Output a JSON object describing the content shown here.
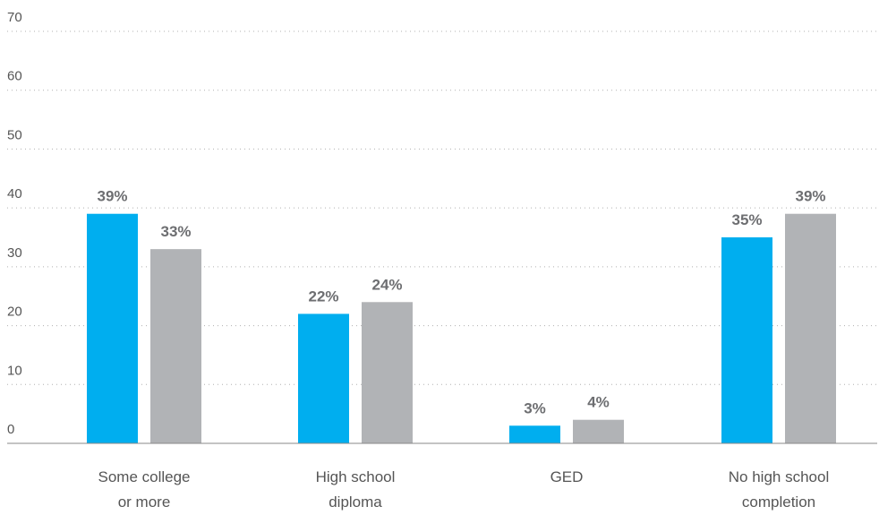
{
  "chart_data": {
    "type": "bar",
    "categories": [
      [
        "Some college",
        "or more"
      ],
      [
        "High school",
        "diploma"
      ],
      [
        "GED"
      ],
      [
        "No high school",
        "completion"
      ]
    ],
    "series": [
      {
        "color": "#00aeef",
        "values": [
          39,
          22,
          3,
          35
        ],
        "labels": [
          "39%",
          "22%",
          "3%",
          "35%"
        ]
      },
      {
        "color": "#b1b3b6",
        "values": [
          33,
          24,
          4,
          39
        ],
        "labels": [
          "33%",
          "24%",
          "4%",
          "39%"
        ]
      }
    ],
    "ylim": [
      0,
      70
    ],
    "yticks": [
      0,
      10,
      20,
      30,
      40,
      50,
      60,
      70
    ],
    "grid": true,
    "title": "",
    "xlabel": "",
    "ylabel": ""
  }
}
